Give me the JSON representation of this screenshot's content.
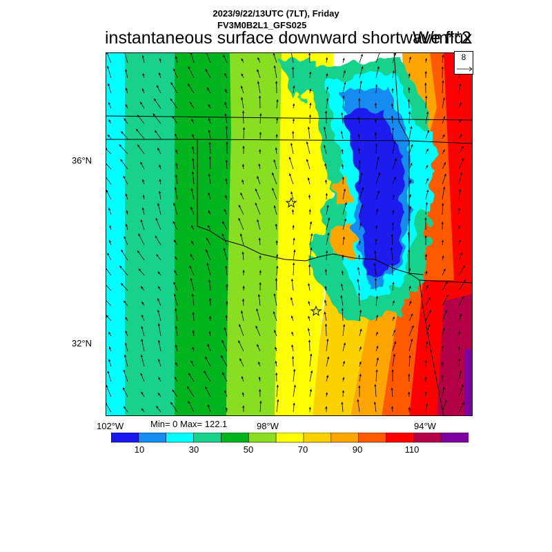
{
  "header": {
    "line1": "2023/9/22/13UTC (7LT), Friday",
    "line2": "FV3M0B2L1_GFS025",
    "main_title": "instantaneous surface downward shortwave flux",
    "units": "W/m**2"
  },
  "axes": {
    "lat_labels": [
      "36°N",
      "32°N"
    ],
    "lon_labels": [
      "102°W",
      "98°W",
      "94°W"
    ]
  },
  "stats": {
    "text": "Min= 0 Max= 122.1"
  },
  "reference_vector": {
    "value": "8"
  },
  "colorbar": {
    "colors": [
      "#1a1aee",
      "#148cf0",
      "#00ffff",
      "#18d28c",
      "#00b41e",
      "#8ade22",
      "#ffff00",
      "#fad200",
      "#ffa500",
      "#ff5a00",
      "#ff0000",
      "#b40046",
      "#7d00a0"
    ],
    "labels": [
      "10",
      "30",
      "50",
      "70",
      "90",
      "110"
    ]
  },
  "map": {
    "markers": [
      "star",
      "star"
    ]
  }
}
